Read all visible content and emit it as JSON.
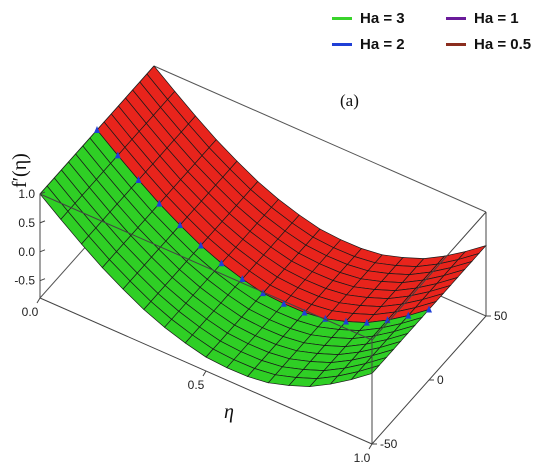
{
  "chart_data": {
    "type": "surface",
    "panel_label": "(a)",
    "zlabel": "f′(η)",
    "xlabel": "η",
    "x_ticks": [
      "0.0",
      "0.5",
      "1.0"
    ],
    "z_ticks": [
      "1.0",
      "0.5",
      "0.0",
      "-0.5"
    ],
    "y_ticks": [
      "50",
      "0",
      "-50"
    ],
    "xlim": [
      0,
      1
    ],
    "ylim": [
      -50,
      50
    ],
    "zlim": [
      -0.8,
      1.0
    ],
    "grid": true,
    "legend_placement": "top-right",
    "legend": [
      {
        "label": "Ha = 3",
        "color": "#39d32b"
      },
      {
        "label": "Ha = 1",
        "color": "#6a1b9a"
      },
      {
        "label": "Ha = 2",
        "color": "#1f3fd6"
      },
      {
        "label": "Ha = 0.5",
        "color": "#8b2d1e"
      }
    ],
    "series": [
      {
        "name": "Ha = 3",
        "surface_color": "#2fcf25",
        "eta": [
          0,
          0.1,
          0.2,
          0.3,
          0.4,
          0.5,
          0.6,
          0.7,
          0.8,
          0.9,
          1.0
        ],
        "f_prime": [
          1.0,
          0.55,
          0.15,
          -0.18,
          -0.42,
          -0.56,
          -0.6,
          -0.52,
          -0.32,
          0.0,
          0.42
        ]
      },
      {
        "name": "Ha = 0.5",
        "surface_color": "#e8241c",
        "eta": [
          0,
          0.1,
          0.2,
          0.3,
          0.4,
          0.5,
          0.6,
          0.7,
          0.8,
          0.9,
          1.0
        ],
        "f_prime": [
          1.0,
          0.55,
          0.15,
          -0.18,
          -0.42,
          -0.56,
          -0.6,
          -0.52,
          -0.32,
          0.0,
          0.42
        ]
      }
    ]
  }
}
